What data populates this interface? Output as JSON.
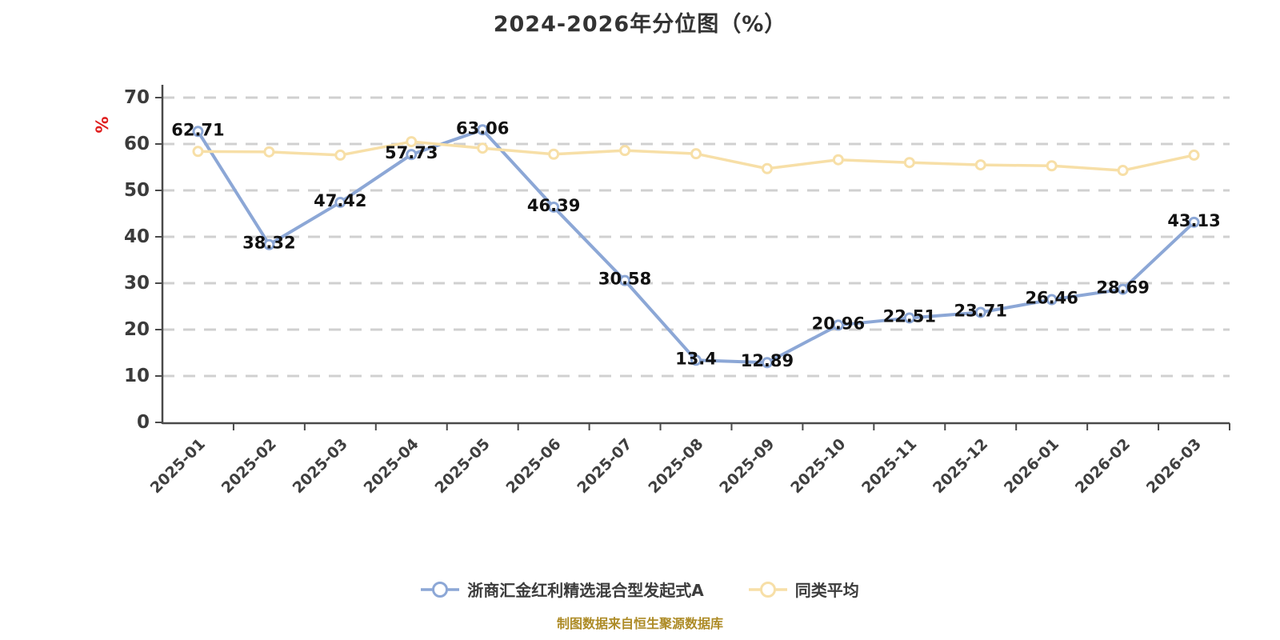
{
  "chart_data": {
    "type": "line",
    "title": "2024-2026年分位图（%）",
    "xlabel": "",
    "ylabel": "%",
    "ylim": [
      0,
      70
    ],
    "y_ticks": [
      0,
      10,
      20,
      30,
      40,
      50,
      60,
      70
    ],
    "grid": "horizontal-dashed",
    "legend_position": "bottom",
    "categories": [
      "2025-01",
      "2025-02",
      "2025-03",
      "2025-04",
      "2025-05",
      "2025-06",
      "2025-07",
      "2025-08",
      "2025-09",
      "2025-10",
      "2025-11",
      "2025-12",
      "2026-01",
      "2026-02",
      "2026-03"
    ],
    "series": [
      {
        "name": "浙商汇金红利精选混合型发起式A",
        "color": "#8CA7D6",
        "marker": "circle-white-fill",
        "show_labels": true,
        "values": [
          62.71,
          38.32,
          47.42,
          57.73,
          63.06,
          46.39,
          30.58,
          13.4,
          12.89,
          20.96,
          22.51,
          23.71,
          26.46,
          28.69,
          43.13
        ]
      },
      {
        "name": "同类平均",
        "color": "#F7DFA7",
        "marker": "circle-white-fill",
        "show_labels": false,
        "values": [
          58.4,
          58.3,
          57.6,
          60.5,
          59.1,
          57.8,
          58.6,
          57.9,
          54.7,
          56.6,
          56.0,
          55.5,
          55.3,
          54.3,
          57.6
        ]
      }
    ]
  },
  "caption": "制图数据来自恒生聚源数据库",
  "colors": {
    "fund_line": "#8CA7D6",
    "avg_line": "#F7DFA7",
    "caption": "#AD8B26",
    "unit_label": "#E01F1F",
    "axis": "#4A4A4A",
    "gridline": "#D0D0D0",
    "data_label": "#111111"
  }
}
